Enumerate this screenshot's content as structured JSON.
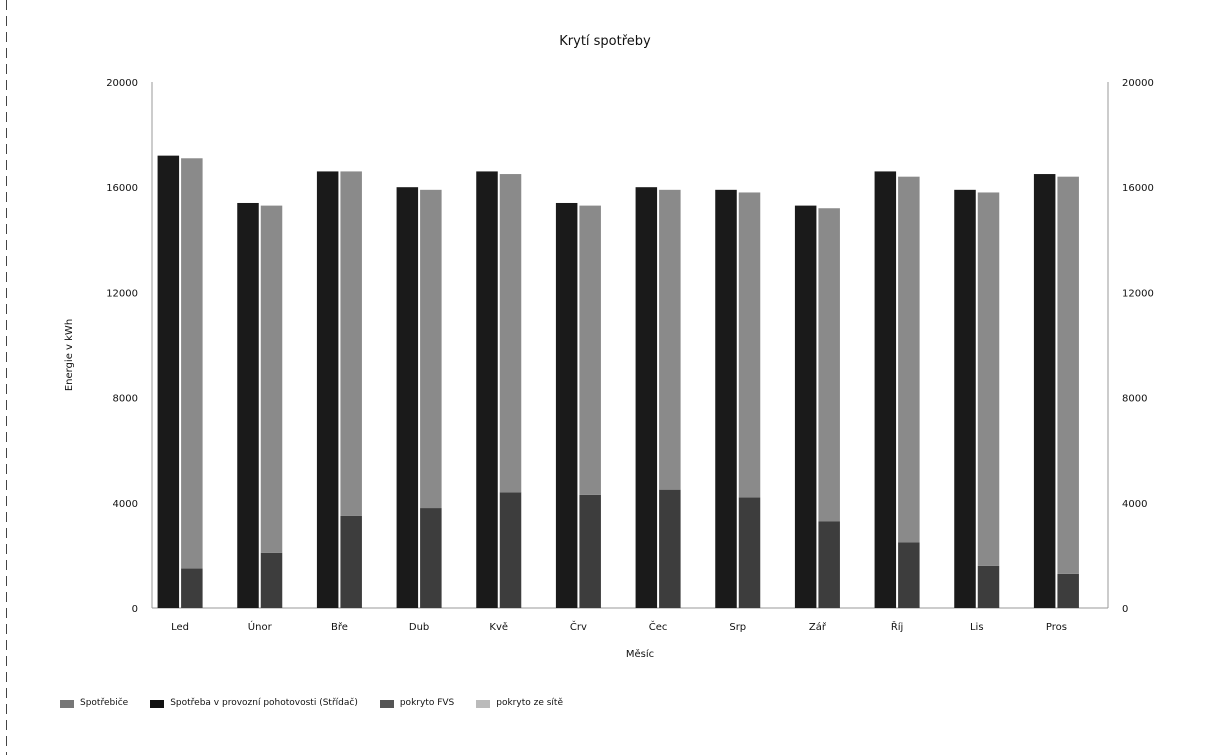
{
  "chart_data": {
    "type": "bar",
    "title": "Krytí spotřeby",
    "xlabel": "Měsíc",
    "ylabel": "Energie v kWh",
    "ylim": [
      0,
      20000
    ],
    "yticks": [
      "0",
      "4000",
      "8000",
      "12000",
      "16000",
      "20000"
    ],
    "grid": false,
    "legend_position": "bottom-left",
    "categories": [
      "Led",
      "Únor",
      "Bře",
      "Dub",
      "Kvě",
      "Črv",
      "Čec",
      "Srp",
      "Zář",
      "Říj",
      "Lis",
      "Pros"
    ],
    "series": [
      {
        "name": "Spotřebiče",
        "color": "#1a1a1a",
        "values": [
          17200,
          15400,
          16600,
          16000,
          16600,
          15400,
          16000,
          15900,
          15300,
          16600,
          15900,
          16500
        ]
      },
      {
        "name": "Spotřeba v provozní pohotovosti (Střídač)",
        "color": "#2a2a2a",
        "values": [
          0,
          0,
          0,
          0,
          0,
          0,
          0,
          0,
          0,
          0,
          0,
          0
        ]
      },
      {
        "name": "pokryto FVS",
        "color": "#3d3d3d",
        "values": [
          1500,
          2100,
          3500,
          3800,
          4400,
          4300,
          4500,
          4200,
          3300,
          2500,
          1600,
          1300
        ]
      },
      {
        "name": "pokryto ze sítě",
        "color": "#8a8a8a",
        "values": [
          15600,
          13200,
          13100,
          12100,
          12100,
          11000,
          11400,
          11600,
          11900,
          13900,
          14200,
          15100
        ]
      }
    ]
  }
}
